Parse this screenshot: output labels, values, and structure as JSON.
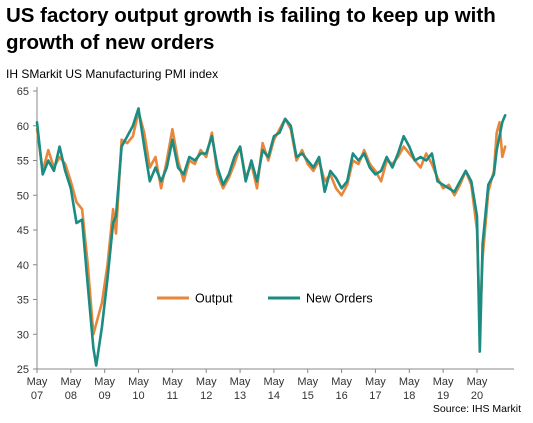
{
  "title": "US factory output growth is failing to keep up with growth of new orders",
  "subtitle": "IH SMarkit US Manufacturing PMI index",
  "source": "Source: IHS Markit",
  "chart_data": {
    "type": "line",
    "title": "US factory output growth is failing to keep up with growth of new orders",
    "ylabel": "",
    "xlabel": "",
    "ylim": [
      25,
      65
    ],
    "yticks": [
      25,
      30,
      35,
      40,
      45,
      50,
      55,
      60,
      65
    ],
    "grid": false,
    "legend_position": "center-bottom",
    "xticks": [
      {
        "label": [
          "May",
          "07"
        ],
        "x": 2007.333
      },
      {
        "label": [
          "May",
          "08"
        ],
        "x": 2008.333
      },
      {
        "label": [
          "May",
          "09"
        ],
        "x": 2009.333
      },
      {
        "label": [
          "May",
          "10"
        ],
        "x": 2010.333
      },
      {
        "label": [
          "May",
          "11"
        ],
        "x": 2011.333
      },
      {
        "label": [
          "May",
          "12"
        ],
        "x": 2012.333
      },
      {
        "label": [
          "May",
          "13"
        ],
        "x": 2013.333
      },
      {
        "label": [
          "May",
          "14"
        ],
        "x": 2014.333
      },
      {
        "label": [
          "May",
          "15"
        ],
        "x": 2015.333
      },
      {
        "label": [
          "May",
          "16"
        ],
        "x": 2016.333
      },
      {
        "label": [
          "May",
          "17"
        ],
        "x": 2017.333
      },
      {
        "label": [
          "May",
          "18"
        ],
        "x": 2018.333
      },
      {
        "label": [
          "May",
          "19"
        ],
        "x": 2019.333
      },
      {
        "label": [
          "May",
          "20"
        ],
        "x": 2020.333
      }
    ],
    "xlim": [
      2007.333,
      2021.25
    ],
    "series": [
      {
        "name": "Output",
        "color": "#e8873a",
        "points": [
          [
            2007.333,
            59.5
          ],
          [
            2007.5,
            53.5
          ],
          [
            2007.667,
            56.5
          ],
          [
            2007.833,
            54.0
          ],
          [
            2008.0,
            55.5
          ],
          [
            2008.167,
            54.5
          ],
          [
            2008.333,
            52.0
          ],
          [
            2008.5,
            49.0
          ],
          [
            2008.667,
            48.0
          ],
          [
            2008.833,
            40.0
          ],
          [
            2009.0,
            30.0
          ],
          [
            2009.083,
            31.5
          ],
          [
            2009.25,
            34.5
          ],
          [
            2009.417,
            40.0
          ],
          [
            2009.583,
            48.0
          ],
          [
            2009.667,
            44.5
          ],
          [
            2009.833,
            58.0
          ],
          [
            2010.0,
            57.5
          ],
          [
            2010.167,
            58.5
          ],
          [
            2010.333,
            62.0
          ],
          [
            2010.5,
            59.0
          ],
          [
            2010.667,
            54.0
          ],
          [
            2010.833,
            55.5
          ],
          [
            2011.0,
            51.0
          ],
          [
            2011.167,
            55.0
          ],
          [
            2011.333,
            59.5
          ],
          [
            2011.5,
            55.0
          ],
          [
            2011.667,
            52.0
          ],
          [
            2011.833,
            55.0
          ],
          [
            2012.0,
            54.5
          ],
          [
            2012.167,
            56.5
          ],
          [
            2012.333,
            55.5
          ],
          [
            2012.5,
            59.0
          ],
          [
            2012.667,
            53.0
          ],
          [
            2012.833,
            51.0
          ],
          [
            2013.0,
            52.5
          ],
          [
            2013.167,
            54.5
          ],
          [
            2013.333,
            57.0
          ],
          [
            2013.5,
            52.5
          ],
          [
            2013.667,
            54.5
          ],
          [
            2013.833,
            51.0
          ],
          [
            2014.0,
            57.5
          ],
          [
            2014.167,
            55.0
          ],
          [
            2014.333,
            58.0
          ],
          [
            2014.5,
            59.5
          ],
          [
            2014.667,
            61.0
          ],
          [
            2014.833,
            59.5
          ],
          [
            2015.0,
            55.0
          ],
          [
            2015.167,
            56.5
          ],
          [
            2015.333,
            54.5
          ],
          [
            2015.5,
            53.5
          ],
          [
            2015.667,
            55.0
          ],
          [
            2015.833,
            52.0
          ],
          [
            2016.0,
            53.0
          ],
          [
            2016.167,
            51.0
          ],
          [
            2016.333,
            50.0
          ],
          [
            2016.5,
            51.5
          ],
          [
            2016.667,
            55.0
          ],
          [
            2016.833,
            54.5
          ],
          [
            2017.0,
            56.5
          ],
          [
            2017.167,
            54.5
          ],
          [
            2017.333,
            53.5
          ],
          [
            2017.5,
            52.0
          ],
          [
            2017.667,
            55.0
          ],
          [
            2017.833,
            54.5
          ],
          [
            2018.0,
            55.5
          ],
          [
            2018.167,
            57.0
          ],
          [
            2018.333,
            56.0
          ],
          [
            2018.5,
            55.0
          ],
          [
            2018.667,
            54.0
          ],
          [
            2018.833,
            56.0
          ],
          [
            2019.0,
            54.5
          ],
          [
            2019.167,
            52.5
          ],
          [
            2019.333,
            51.0
          ],
          [
            2019.5,
            51.5
          ],
          [
            2019.667,
            50.0
          ],
          [
            2019.833,
            51.5
          ],
          [
            2020.0,
            53.5
          ],
          [
            2020.167,
            51.5
          ],
          [
            2020.333,
            45.0
          ],
          [
            2020.417,
            31.0
          ],
          [
            2020.5,
            41.0
          ],
          [
            2020.667,
            50.5
          ],
          [
            2020.833,
            53.5
          ],
          [
            2020.917,
            59.0
          ],
          [
            2021.0,
            60.5
          ],
          [
            2021.083,
            55.5
          ],
          [
            2021.167,
            57.0
          ]
        ]
      },
      {
        "name": "New Orders",
        "color": "#1a8c82",
        "points": [
          [
            2007.333,
            60.5
          ],
          [
            2007.5,
            53.0
          ],
          [
            2007.667,
            55.0
          ],
          [
            2007.833,
            53.5
          ],
          [
            2008.0,
            57.0
          ],
          [
            2008.167,
            53.5
          ],
          [
            2008.333,
            51.0
          ],
          [
            2008.5,
            46.0
          ],
          [
            2008.667,
            46.5
          ],
          [
            2008.833,
            37.0
          ],
          [
            2009.0,
            28.0
          ],
          [
            2009.083,
            25.5
          ],
          [
            2009.25,
            31.0
          ],
          [
            2009.417,
            38.0
          ],
          [
            2009.583,
            46.0
          ],
          [
            2009.667,
            47.0
          ],
          [
            2009.833,
            57.0
          ],
          [
            2010.0,
            58.5
          ],
          [
            2010.167,
            60.0
          ],
          [
            2010.333,
            62.5
          ],
          [
            2010.5,
            57.0
          ],
          [
            2010.667,
            52.0
          ],
          [
            2010.833,
            54.0
          ],
          [
            2011.0,
            52.0
          ],
          [
            2011.167,
            54.0
          ],
          [
            2011.333,
            58.0
          ],
          [
            2011.5,
            54.0
          ],
          [
            2011.667,
            53.0
          ],
          [
            2011.833,
            55.5
          ],
          [
            2012.0,
            55.0
          ],
          [
            2012.167,
            56.0
          ],
          [
            2012.333,
            56.0
          ],
          [
            2012.5,
            58.5
          ],
          [
            2012.667,
            54.0
          ],
          [
            2012.833,
            51.5
          ],
          [
            2013.0,
            53.0
          ],
          [
            2013.167,
            55.5
          ],
          [
            2013.333,
            57.0
          ],
          [
            2013.5,
            52.0
          ],
          [
            2013.667,
            55.0
          ],
          [
            2013.833,
            52.0
          ],
          [
            2014.0,
            56.5
          ],
          [
            2014.167,
            55.5
          ],
          [
            2014.333,
            58.5
          ],
          [
            2014.5,
            59.0
          ],
          [
            2014.667,
            61.0
          ],
          [
            2014.833,
            60.0
          ],
          [
            2015.0,
            55.5
          ],
          [
            2015.167,
            56.0
          ],
          [
            2015.333,
            55.0
          ],
          [
            2015.5,
            54.0
          ],
          [
            2015.667,
            55.5
          ],
          [
            2015.833,
            50.5
          ],
          [
            2016.0,
            53.5
          ],
          [
            2016.167,
            52.5
          ],
          [
            2016.333,
            51.0
          ],
          [
            2016.5,
            52.0
          ],
          [
            2016.667,
            56.0
          ],
          [
            2016.833,
            55.0
          ],
          [
            2017.0,
            56.0
          ],
          [
            2017.167,
            54.0
          ],
          [
            2017.333,
            53.0
          ],
          [
            2017.5,
            53.5
          ],
          [
            2017.667,
            55.5
          ],
          [
            2017.833,
            54.0
          ],
          [
            2018.0,
            56.0
          ],
          [
            2018.167,
            58.5
          ],
          [
            2018.333,
            57.0
          ],
          [
            2018.5,
            55.0
          ],
          [
            2018.667,
            55.5
          ],
          [
            2018.833,
            55.0
          ],
          [
            2019.0,
            56.0
          ],
          [
            2019.167,
            52.0
          ],
          [
            2019.333,
            51.5
          ],
          [
            2019.5,
            51.0
          ],
          [
            2019.667,
            50.5
          ],
          [
            2019.833,
            52.0
          ],
          [
            2020.0,
            53.5
          ],
          [
            2020.167,
            52.0
          ],
          [
            2020.333,
            47.0
          ],
          [
            2020.417,
            27.5
          ],
          [
            2020.5,
            43.0
          ],
          [
            2020.667,
            51.5
          ],
          [
            2020.833,
            53.0
          ],
          [
            2020.917,
            56.5
          ],
          [
            2021.0,
            58.5
          ],
          [
            2021.083,
            60.5
          ],
          [
            2021.167,
            61.5
          ]
        ]
      }
    ]
  }
}
